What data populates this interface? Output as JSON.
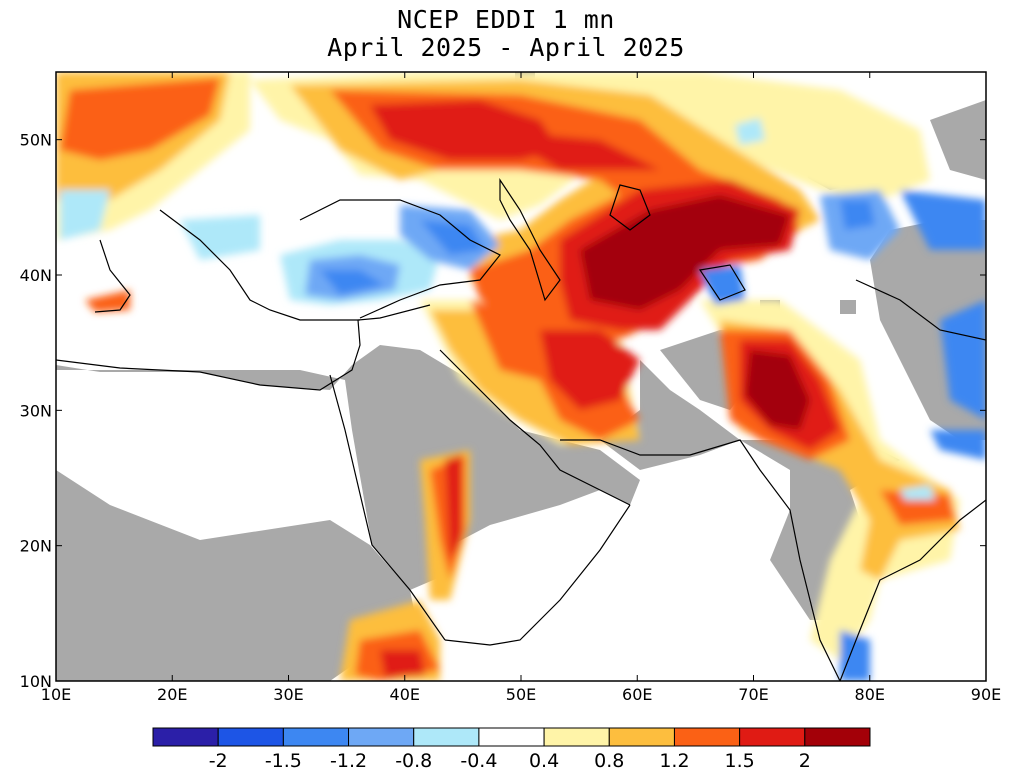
{
  "title_line1": "NCEP EDDI 1 mn",
  "title_line2": "April 2025 - April 2025",
  "map": {
    "lon_min": 10,
    "lon_max": 90,
    "lat_min": 10,
    "lat_max": 55,
    "x_ticks": [
      "10E",
      "20E",
      "30E",
      "40E",
      "50E",
      "60E",
      "70E",
      "80E",
      "90E"
    ],
    "y_ticks": [
      "10N",
      "20N",
      "30N",
      "40N",
      "50N"
    ],
    "no_data_color": "#a9a9a9",
    "coast_color": "#000000"
  },
  "colorbar": {
    "colors": [
      "#2b1fa8",
      "#1d55e6",
      "#3d87f2",
      "#6ea8f5",
      "#aee8f9",
      "#ffffff",
      "#fff4a8",
      "#fdbe3e",
      "#fb6115",
      "#e01b14",
      "#a30008"
    ],
    "labels": [
      "-2",
      "-1.5",
      "-1.2",
      "-0.8",
      "-0.4",
      "0.4",
      "0.8",
      "1.2",
      "1.5",
      "2"
    ]
  }
}
